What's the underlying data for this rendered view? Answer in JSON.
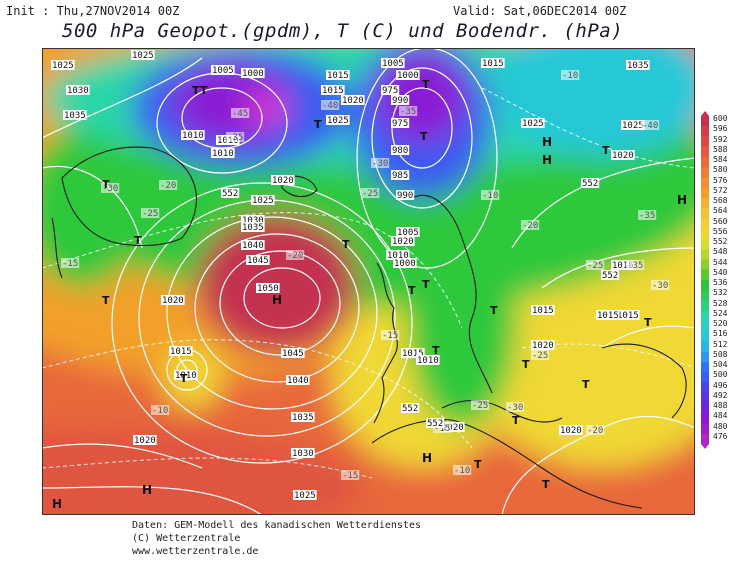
{
  "header": {
    "init": "Init : Thu,27NOV2014 00Z",
    "valid": "Valid: Sat,06DEC2014 00Z",
    "title": "500 hPa Geopot.(gpdm), T (C) und Bodendr. (hPa)"
  },
  "footer": {
    "line1": "Daten: GEM-Modell des kanadischen Wetterdienstes",
    "line2": "(C) Wetterzentrale",
    "line3": "www.wetterzentrale.de"
  },
  "colors": {
    "purple": "#8a1ad6",
    "magenta": "#d23ad2",
    "blue": "#3a5cf0",
    "cyan": "#28c8d8",
    "teal": "#2cd6a8",
    "green": "#2ec83c",
    "yellow": "#f0d834",
    "orange": "#f2a02a",
    "deep_orange": "#e8683a",
    "red_orange": "#e05540",
    "crimson": "#c43050",
    "contour": "#ffffff",
    "coast": "#1a1a1a"
  },
  "legend": {
    "labels": [
      "600",
      "596",
      "592",
      "588",
      "584",
      "580",
      "576",
      "572",
      "568",
      "564",
      "560",
      "556",
      "552",
      "548",
      "544",
      "540",
      "536",
      "532",
      "528",
      "524",
      "520",
      "516",
      "512",
      "508",
      "504",
      "500",
      "496",
      "492",
      "488",
      "484",
      "480",
      "476"
    ],
    "colors": [
      "#c43050",
      "#d13c4c",
      "#dc4a46",
      "#e55842",
      "#ea6a3c",
      "#ee7c36",
      "#f09030",
      "#f2a02a",
      "#f4b030",
      "#f4c036",
      "#f2ce38",
      "#eed836",
      "#d8dc34",
      "#b4d830",
      "#8ad02e",
      "#5cc830",
      "#34c23e",
      "#2ec85c",
      "#2cd07e",
      "#2cd6a8",
      "#2ad0c8",
      "#28c8d8",
      "#2cb4e4",
      "#3096ee",
      "#3474f2",
      "#3a5cf0",
      "#4a44ea",
      "#5e32e2",
      "#7424dc",
      "#8a1ad6",
      "#9e1ecc",
      "#b226c0"
    ]
  },
  "pressure_labels": [
    "1025",
    "1030",
    "1035",
    "1025",
    "1010",
    "1005",
    "1000",
    "1010",
    "1010",
    "1015",
    "1015",
    "1020",
    "1025",
    "1020",
    "1005",
    "1000",
    "990",
    "975",
    "975",
    "980",
    "985",
    "990",
    "1015",
    "1025",
    "1035",
    "1025",
    "1020",
    "1030",
    "1035",
    "1040",
    "1045",
    "1050",
    "1045",
    "1040",
    "1035",
    "1030",
    "1025",
    "1020",
    "1015",
    "1010",
    "1005",
    "1010",
    "1000",
    "1015",
    "1010",
    "1020",
    "1020",
    "1015",
    "1015",
    "1020",
    "1025",
    "1020",
    "1015",
    "1020",
    "1015"
  ],
  "temp_labels": [
    "-45",
    "-40",
    "-35",
    "-30",
    "-25",
    "-20",
    "-15",
    "-10",
    "-35",
    "-30",
    "-25",
    "-20",
    "-15",
    "-10",
    "-40",
    "-35",
    "-30",
    "-25",
    "-20",
    "-10",
    "-15",
    "-25",
    "-30",
    "-20",
    "-15",
    "-10",
    "-35",
    "-25"
  ],
  "h552_labels": [
    "552",
    "552",
    "552",
    "552",
    "552"
  ],
  "centers": [
    {
      "type": "H"
    },
    {
      "type": "H"
    },
    {
      "type": "H"
    },
    {
      "type": "H"
    },
    {
      "type": "H"
    },
    {
      "type": "H"
    },
    {
      "type": "H"
    },
    {
      "type": "T"
    },
    {
      "type": "T"
    },
    {
      "type": "T"
    },
    {
      "type": "T"
    },
    {
      "type": "T"
    },
    {
      "type": "T"
    },
    {
      "type": "T"
    },
    {
      "type": "T"
    },
    {
      "type": "T"
    },
    {
      "type": "T"
    },
    {
      "type": "T"
    },
    {
      "type": "T"
    },
    {
      "type": "T"
    },
    {
      "type": "T"
    },
    {
      "type": "T"
    },
    {
      "type": "T"
    },
    {
      "type": "T"
    },
    {
      "type": "T"
    },
    {
      "type": "T"
    },
    {
      "type": "T"
    },
    {
      "type": "T"
    }
  ]
}
